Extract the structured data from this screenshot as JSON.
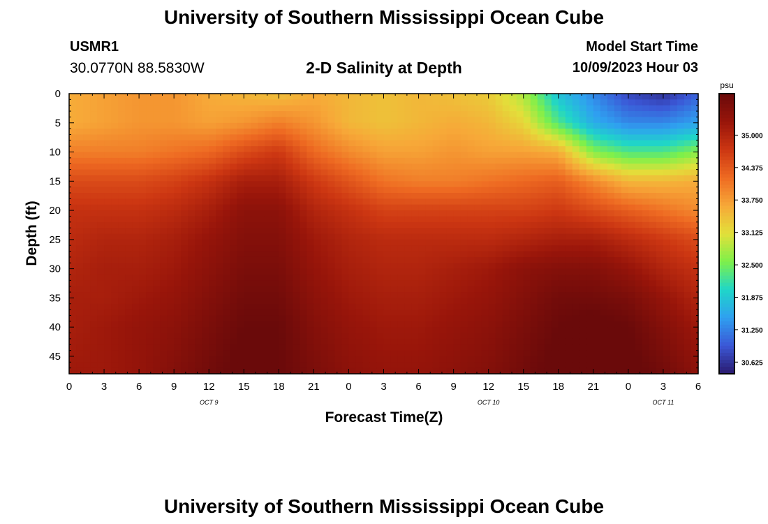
{
  "header": {
    "title": "University of Southern Mississippi Ocean Cube",
    "station_id": "USMR1",
    "coordinates": "30.0770N  88.5830W",
    "model_start_label": "Model Start Time",
    "model_start_value": "10/09/2023 Hour 03"
  },
  "footer": {
    "title": "University of Southern Mississippi Ocean Cube"
  },
  "colors": {
    "colormap": [
      "#2a1a6e",
      "#3b57d6",
      "#2fa0f0",
      "#1fd6c8",
      "#7ef04a",
      "#e2e03a",
      "#f7a838",
      "#ee6a22",
      "#cc3612",
      "#98150a",
      "#6a0a0a"
    ]
  },
  "chart_data": {
    "type": "heatmap",
    "title": "2-D Salinity at Depth",
    "xlabel": "Forecast Time(Z)",
    "ylabel": "Depth (ft)",
    "colorbar_unit": "psu",
    "x": [
      0,
      3,
      6,
      9,
      12,
      15,
      18,
      21,
      24,
      27,
      30,
      33,
      36,
      39,
      42,
      45,
      48,
      51,
      54
    ],
    "x_tick_labels": [
      "0",
      "3",
      "6",
      "9",
      "12",
      "15",
      "18",
      "21",
      "0",
      "3",
      "6",
      "9",
      "12",
      "15",
      "18",
      "21",
      "0",
      "3",
      "6"
    ],
    "date_labels": [
      {
        "x": 12,
        "label": "OCT 9"
      },
      {
        "x": 36,
        "label": "OCT 10"
      },
      {
        "x": 51,
        "label": "OCT 11"
      }
    ],
    "y": [
      0,
      5,
      10,
      15,
      20,
      25,
      30,
      35,
      40,
      45
    ],
    "y_tick_labels": [
      "0",
      "5",
      "10",
      "15",
      "20",
      "25",
      "30",
      "35",
      "40",
      "45"
    ],
    "xlim": [
      0,
      54
    ],
    "ylim": [
      48,
      0
    ],
    "depth_samples": [
      0,
      5,
      10,
      15,
      20,
      25,
      30,
      35,
      40,
      48
    ],
    "values": [
      [
        33.6,
        33.7,
        33.8,
        33.8,
        33.6,
        33.5,
        33.4,
        33.6,
        33.5,
        33.4,
        33.5,
        33.4,
        33.3,
        32.8,
        31.8,
        31.3,
        30.8,
        30.6,
        31.0
      ],
      [
        33.6,
        33.7,
        33.8,
        33.8,
        33.7,
        33.8,
        34.0,
        33.8,
        33.5,
        33.4,
        33.5,
        33.6,
        33.5,
        33.2,
        32.3,
        31.6,
        31.3,
        31.3,
        31.5
      ],
      [
        34.0,
        34.0,
        34.0,
        34.1,
        34.2,
        34.5,
        34.7,
        34.2,
        33.9,
        33.7,
        33.7,
        33.8,
        33.7,
        33.7,
        33.6,
        32.6,
        32.3,
        32.3,
        32.6
      ],
      [
        34.5,
        34.5,
        34.5,
        34.6,
        34.8,
        35.1,
        35.1,
        34.7,
        34.4,
        34.1,
        34.0,
        34.0,
        34.1,
        34.2,
        34.3,
        33.9,
        33.5,
        33.5,
        33.6
      ],
      [
        34.8,
        34.8,
        34.8,
        34.9,
        35.1,
        35.4,
        35.4,
        35.0,
        34.8,
        34.6,
        34.6,
        34.6,
        34.6,
        34.6,
        34.7,
        34.5,
        34.3,
        34.1,
        33.9
      ],
      [
        34.9,
        35.0,
        35.0,
        35.1,
        35.3,
        35.5,
        35.5,
        35.2,
        35.0,
        34.9,
        34.9,
        34.9,
        34.9,
        35.0,
        35.1,
        35.1,
        34.9,
        34.7,
        34.5
      ],
      [
        35.0,
        35.1,
        35.1,
        35.2,
        35.4,
        35.6,
        35.6,
        35.3,
        35.1,
        35.0,
        35.0,
        35.1,
        35.2,
        35.4,
        35.5,
        35.5,
        35.3,
        35.0,
        34.8
      ],
      [
        35.1,
        35.1,
        35.2,
        35.3,
        35.5,
        35.7,
        35.7,
        35.4,
        35.2,
        35.1,
        35.1,
        35.2,
        35.3,
        35.5,
        35.7,
        35.7,
        35.6,
        35.3,
        35.0
      ],
      [
        35.1,
        35.2,
        35.3,
        35.4,
        35.6,
        35.8,
        35.8,
        35.5,
        35.3,
        35.2,
        35.2,
        35.3,
        35.4,
        35.6,
        35.8,
        35.9,
        35.8,
        35.5,
        35.2
      ],
      [
        35.2,
        35.2,
        35.3,
        35.5,
        35.7,
        35.9,
        35.8,
        35.6,
        35.4,
        35.3,
        35.3,
        35.4,
        35.5,
        35.7,
        35.9,
        36.0,
        35.9,
        35.7,
        35.4
      ]
    ],
    "colorbar": {
      "range": [
        30.4,
        35.8
      ],
      "ticks": [
        30.625,
        31.25,
        31.875,
        32.5,
        33.125,
        33.75,
        34.375,
        35.0
      ],
      "tick_labels": [
        "30.625",
        "31.250",
        "31.875",
        "32.500",
        "33.125",
        "33.750",
        "34.375",
        "35.000"
      ]
    }
  }
}
